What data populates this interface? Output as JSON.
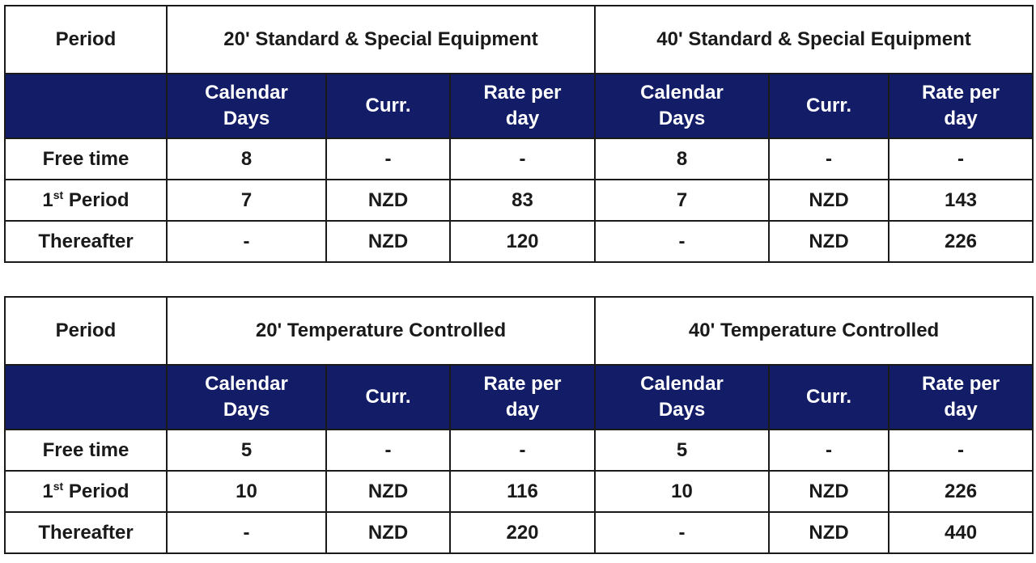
{
  "tables": [
    {
      "period_label": "Period",
      "group_20": "20' Standard & Special Equipment",
      "group_40": "40' Standard & Special Equipment",
      "sub_headers": {
        "days_line1": "Calendar",
        "days_line2": "Days",
        "currency": "Curr.",
        "rate_line1": "Rate per",
        "rate_line2": "day"
      },
      "rows": [
        {
          "label": "Free time",
          "days_20": "8",
          "curr_20": "-",
          "rate_20": "-",
          "days_40": "8",
          "curr_40": "-",
          "rate_40": "-"
        },
        {
          "label_ordinal": "1",
          "label_suffix": "st",
          "label_rest": " Period",
          "days_20": "7",
          "curr_20": "NZD",
          "rate_20": "83",
          "days_40": "7",
          "curr_40": "NZD",
          "rate_40": "143"
        },
        {
          "label": "Thereafter",
          "days_20": "-",
          "curr_20": "NZD",
          "rate_20": "120",
          "days_40": "-",
          "curr_40": "NZD",
          "rate_40": "226"
        }
      ]
    },
    {
      "period_label": "Period",
      "group_20": "20' Temperature Controlled",
      "group_40": "40' Temperature Controlled",
      "sub_headers": {
        "days_line1": "Calendar",
        "days_line2": "Days",
        "currency": "Curr.",
        "rate_line1": "Rate per",
        "rate_line2": "day"
      },
      "rows": [
        {
          "label": "Free time",
          "days_20": "5",
          "curr_20": "-",
          "rate_20": "-",
          "days_40": "5",
          "curr_40": "-",
          "rate_40": "-"
        },
        {
          "label_ordinal": "1",
          "label_suffix": "st",
          "label_rest": " Period",
          "days_20": "10",
          "curr_20": "NZD",
          "rate_20": "116",
          "days_40": "10",
          "curr_40": "NZD",
          "rate_40": "226"
        },
        {
          "label": "Thereafter",
          "days_20": "-",
          "curr_20": "NZD",
          "rate_20": "220",
          "days_40": "-",
          "curr_40": "NZD",
          "rate_40": "440"
        }
      ]
    }
  ],
  "colors": {
    "header_background": "#131c66",
    "header_text": "#ffffff",
    "border": "#1a1a1a"
  }
}
